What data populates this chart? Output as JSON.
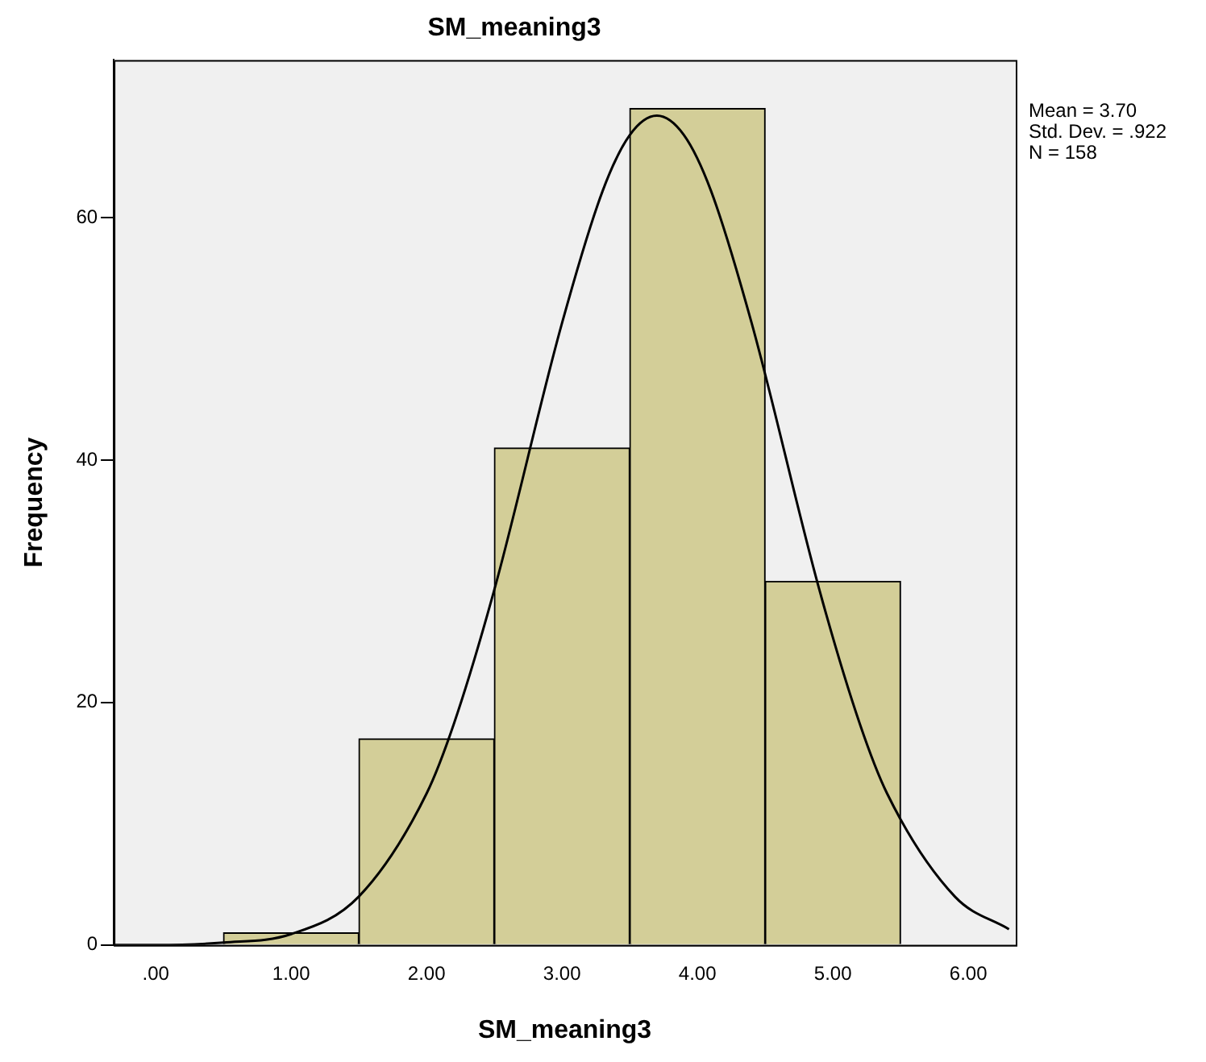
{
  "chart_data": {
    "type": "histogram",
    "title": "SM_meaning3",
    "xlabel": "SM_meaning3",
    "ylabel": "Frequency",
    "bins": [
      0.5,
      1.5,
      2.5,
      3.5,
      4.5,
      5.5
    ],
    "values": [
      1,
      17,
      41,
      69,
      30
    ],
    "color": "#d3ce98",
    "series": [
      {
        "type": "line",
        "x": [
          -0.3,
          0,
          0.5,
          1,
          1.5,
          2,
          2.2,
          2.5,
          3,
          3.3,
          3.5,
          3.7,
          3.9,
          4.1,
          4.4,
          4.9,
          5.2,
          5.4,
          5.9,
          6.3
        ],
        "values": [
          0,
          0,
          0.2,
          0.9,
          4,
          12.5,
          18.2,
          29.3,
          51.3,
          62.2,
          66.8,
          68.4,
          66.8,
          62.2,
          51.3,
          29.3,
          18.2,
          12.5,
          4,
          1.3
        ],
        "color": "#000000"
      }
    ],
    "xlim": [
      -0.31,
      6.35
    ],
    "xticks": [
      {
        "value": 0,
        "label": ".00"
      },
      {
        "value": 1,
        "label": "1.00"
      },
      {
        "value": 2,
        "label": "2.00"
      },
      {
        "value": 3,
        "label": "3.00"
      },
      {
        "value": 4,
        "label": "4.00"
      },
      {
        "value": 5,
        "label": "5.00"
      },
      {
        "value": 6,
        "label": "6.00"
      }
    ],
    "ylim": [
      0,
      73
    ],
    "yticks": [
      0,
      20,
      40,
      60
    ],
    "annotations": [
      "Mean = 3.70",
      "Std. Dev. = .922",
      "N = 158"
    ],
    "grid": false,
    "legend": false,
    "marker": "none"
  }
}
